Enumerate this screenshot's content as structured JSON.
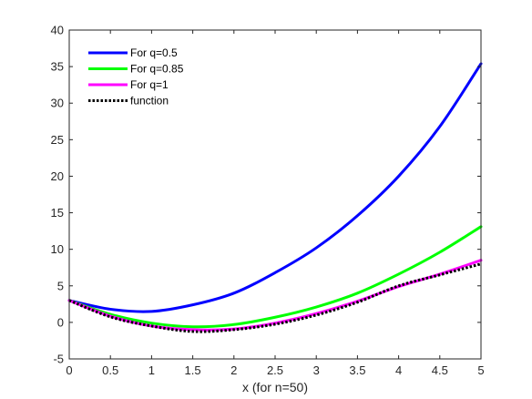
{
  "chart_data": {
    "type": "line",
    "xlabel": "x (for n=50)",
    "ylabel": "",
    "title": "",
    "xlim": [
      0,
      5
    ],
    "ylim": [
      -5,
      40
    ],
    "xticks": [
      0,
      0.5,
      1,
      1.5,
      2,
      2.5,
      3,
      3.5,
      4,
      4.5,
      5
    ],
    "xtick_labels": [
      "0",
      "0.5",
      "1",
      "1.5",
      "2",
      "2.5",
      "3",
      "3.5",
      "4",
      "4.5",
      "5"
    ],
    "yticks": [
      -5,
      0,
      5,
      10,
      15,
      20,
      25,
      30,
      35,
      40
    ],
    "ytick_labels": [
      "-5",
      "0",
      "5",
      "10",
      "15",
      "20",
      "25",
      "30",
      "35",
      "40"
    ],
    "grid": false,
    "legend_position": "top-left",
    "x": [
      0,
      0.5,
      1,
      1.5,
      2,
      2.5,
      3,
      3.5,
      4,
      4.5,
      5
    ],
    "series": [
      {
        "name": "For q=0.5",
        "color": "#0000ff",
        "style": "solid",
        "values": [
          3.0,
          1.8,
          1.5,
          2.4,
          4.0,
          6.8,
          10.2,
          14.6,
          20.0,
          26.8,
          35.4
        ]
      },
      {
        "name": "For q=0.85",
        "color": "#00ff00",
        "style": "solid",
        "values": [
          3.0,
          1.1,
          -0.1,
          -0.6,
          -0.3,
          0.7,
          2.1,
          4.0,
          6.6,
          9.6,
          13.1
        ]
      },
      {
        "name": "For q=1",
        "color": "#ff00ff",
        "style": "solid",
        "values": [
          3.0,
          0.85,
          -0.5,
          -1.0,
          -0.9,
          -0.1,
          1.2,
          2.9,
          4.9,
          6.6,
          8.5
        ]
      },
      {
        "name": "function",
        "color": "#000000",
        "style": "dotted",
        "values": [
          3.0,
          0.75,
          -0.5,
          -1.25,
          -1.0,
          -0.25,
          1.0,
          2.75,
          5.0,
          6.5,
          8.0
        ]
      }
    ]
  }
}
